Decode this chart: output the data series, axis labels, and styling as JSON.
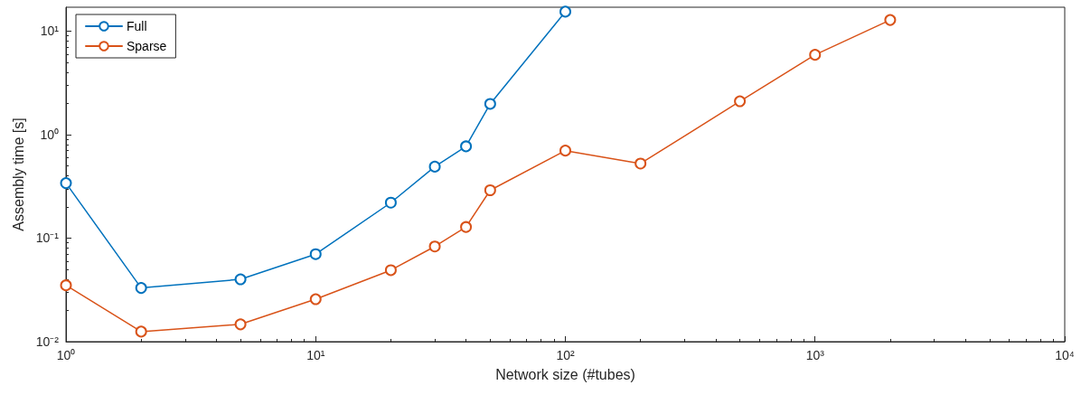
{
  "chart_data": {
    "type": "line",
    "xlabel": "Network size (#tubes)",
    "ylabel": "Assembly time [s]",
    "log": "xy",
    "grid": false,
    "legend": "top left",
    "marker": "circle",
    "line_style": "solid",
    "xlim": [
      1,
      10000
    ],
    "xticks": [
      {
        "value": 1,
        "label": "10⁰"
      },
      {
        "value": 10,
        "label": "10¹"
      },
      {
        "value": 100,
        "label": "10²"
      },
      {
        "value": 1000,
        "label": "10³"
      },
      {
        "value": 10000,
        "label": "10⁴"
      }
    ],
    "ylim": [
      0.01,
      17
    ],
    "yticks": [
      {
        "value": 0.01,
        "label": "10⁻²"
      },
      {
        "value": 0.1,
        "label": "10⁻¹"
      },
      {
        "value": 1,
        "label": "10⁰"
      },
      {
        "value": 10,
        "label": "10¹"
      }
    ],
    "series": [
      {
        "name": "Full",
        "color": "#0072bd",
        "x": [
          1,
          2,
          5,
          10,
          20,
          30,
          40,
          50,
          100
        ],
        "values": [
          0.34,
          0.033,
          0.04,
          0.07,
          0.22,
          0.49,
          0.77,
          1.98,
          15.4
        ]
      },
      {
        "name": "Sparse",
        "color": "#d95319",
        "x": [
          1,
          2,
          5,
          10,
          20,
          30,
          40,
          50,
          100,
          200,
          500,
          1000,
          2000
        ],
        "values": [
          0.035,
          0.0125,
          0.0147,
          0.0257,
          0.049,
          0.083,
          0.128,
          0.29,
          0.7,
          0.525,
          2.1,
          5.9,
          12.8
        ]
      }
    ]
  }
}
